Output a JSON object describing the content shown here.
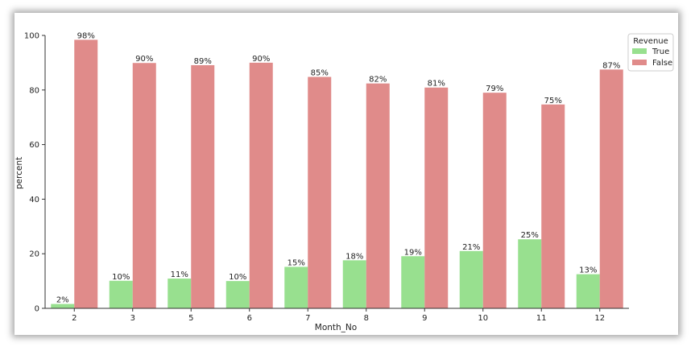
{
  "chart_data": {
    "type": "bar",
    "xlabel": "Month_No",
    "ylabel": "percent",
    "ylim": [
      0,
      100
    ],
    "yticks": [
      0,
      20,
      40,
      60,
      80,
      100
    ],
    "categories": [
      "2",
      "3",
      "5",
      "6",
      "7",
      "8",
      "9",
      "10",
      "11",
      "12"
    ],
    "legend": {
      "title": "Revenue",
      "position": "top-right"
    },
    "series": [
      {
        "name": "True",
        "color": "#98e08f",
        "values": [
          1.6,
          10.1,
          10.9,
          10.0,
          15.2,
          17.6,
          19.1,
          21.0,
          25.3,
          12.5
        ],
        "labels": [
          "2%",
          "10%",
          "11%",
          "10%",
          "15%",
          "18%",
          "19%",
          "21%",
          "25%",
          "13%"
        ]
      },
      {
        "name": "False",
        "color": "#e08b8a",
        "values": [
          98.4,
          89.9,
          89.1,
          90.0,
          84.8,
          82.4,
          80.9,
          79.0,
          74.7,
          87.5
        ],
        "labels": [
          "98%",
          "90%",
          "89%",
          "90%",
          "85%",
          "82%",
          "81%",
          "79%",
          "75%",
          "87%"
        ]
      }
    ],
    "grid": false
  }
}
